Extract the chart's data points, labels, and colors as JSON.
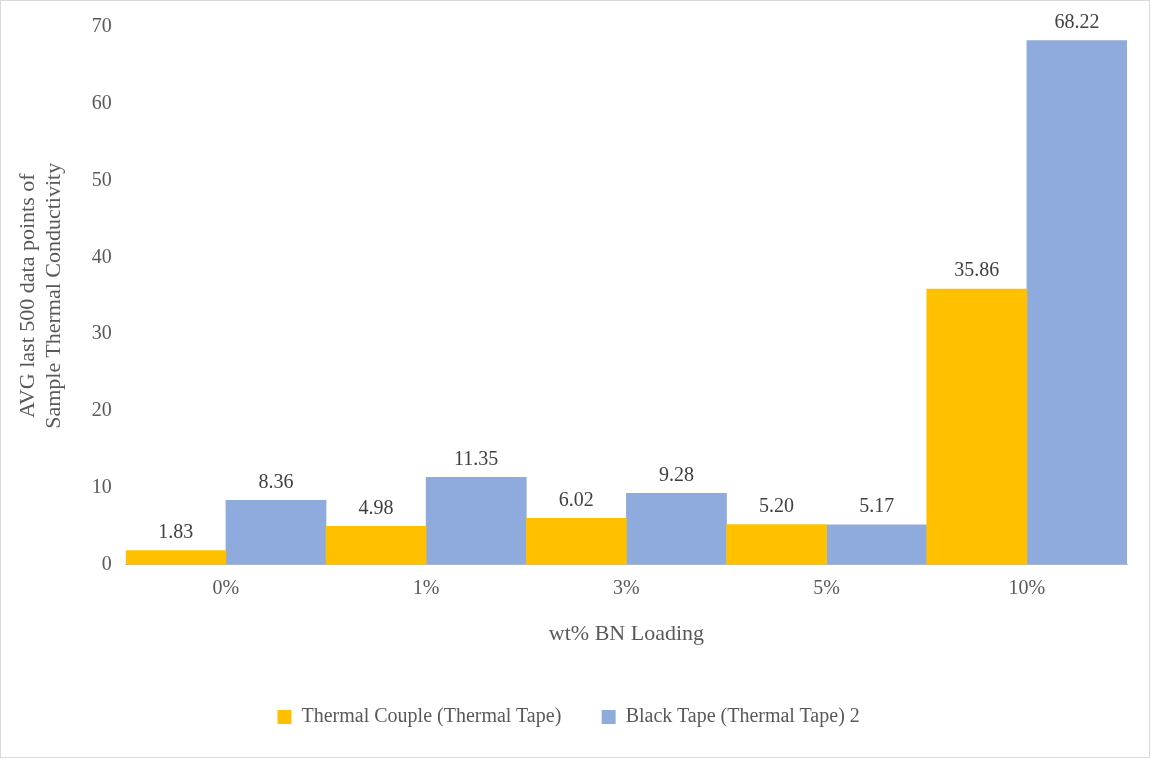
{
  "chart_data": {
    "type": "bar",
    "xlabel": "wt% BN Loading",
    "ylabel": "AVG last 500 data points of\nSample Thermal Conductivity",
    "categories": [
      "0%",
      "1%",
      "3%",
      "5%",
      "10%"
    ],
    "series": [
      {
        "name": "Thermal Couple (Thermal Tape)",
        "color": "#ffc000",
        "values": [
          1.83,
          4.98,
          6.02,
          5.2,
          35.86
        ],
        "value_labels": [
          "1.83",
          "4.98",
          "6.02",
          "5.20",
          "35.86"
        ]
      },
      {
        "name": "Black Tape (Thermal Tape) 2",
        "color": "#8faadc",
        "values": [
          8.36,
          11.35,
          9.28,
          5.17,
          68.22
        ],
        "value_labels": [
          "8.36",
          "11.35",
          "9.28",
          "5.17",
          "68.22"
        ]
      }
    ],
    "ylim": [
      0,
      70
    ],
    "yticks": [
      0,
      10,
      20,
      30,
      40,
      50,
      60,
      70
    ],
    "grid": false,
    "legend": "bottom"
  }
}
